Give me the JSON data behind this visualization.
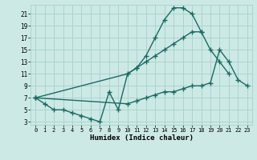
{
  "xlabel": "Humidex (Indice chaleur)",
  "bg_color": "#cce9e5",
  "grid_color": "#aad4cf",
  "line_color": "#1a6b64",
  "marker": "+",
  "markersize": 4,
  "linewidth": 1.0,
  "line1_x": [
    0,
    1,
    2,
    3,
    4,
    5,
    6,
    7,
    8,
    9,
    10,
    11,
    12,
    13,
    14,
    15,
    16,
    17,
    18
  ],
  "line1_y": [
    7,
    6,
    5,
    5,
    4.5,
    4,
    3.5,
    3,
    8,
    5,
    11,
    12,
    14,
    17,
    20,
    22,
    22,
    21,
    18
  ],
  "line2_x": [
    0,
    10,
    11,
    12,
    13,
    14,
    15,
    16,
    17,
    18,
    19,
    20,
    21
  ],
  "line2_y": [
    7,
    11,
    12,
    13,
    14,
    15,
    16,
    17,
    18,
    18,
    15,
    13,
    11
  ],
  "line3_x": [
    0,
    10,
    11,
    12,
    13,
    14,
    15,
    16,
    17,
    18,
    19,
    20,
    21,
    22,
    23
  ],
  "line3_y": [
    7,
    6,
    6.5,
    7,
    7.5,
    8,
    8,
    8.5,
    9,
    9,
    9.5,
    15,
    13,
    10,
    9
  ],
  "xlim": [
    -0.5,
    23.5
  ],
  "ylim": [
    2.5,
    22.5
  ],
  "yticks": [
    3,
    5,
    7,
    9,
    11,
    13,
    15,
    17,
    19,
    21
  ],
  "xticks": [
    0,
    1,
    2,
    3,
    4,
    5,
    6,
    7,
    8,
    9,
    10,
    11,
    12,
    13,
    14,
    15,
    16,
    17,
    18,
    19,
    20,
    21,
    22,
    23
  ]
}
